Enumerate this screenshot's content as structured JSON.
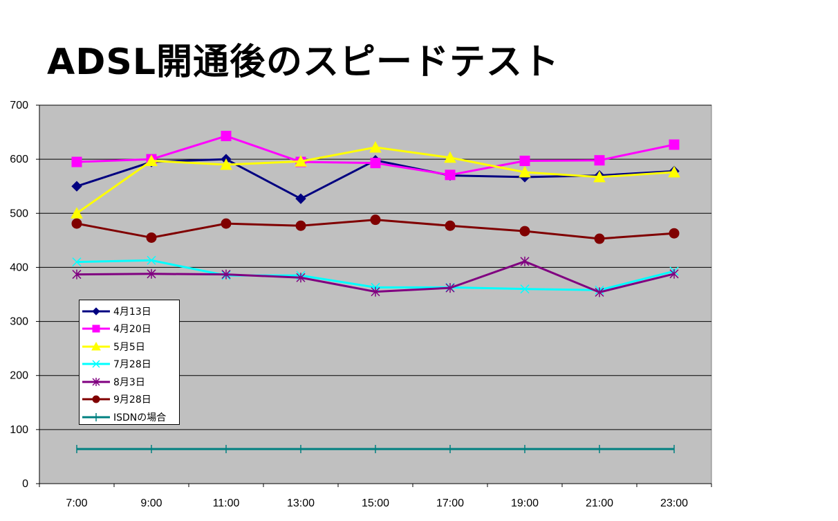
{
  "chart_data": {
    "type": "line",
    "title": "ADSL開通後のスピードテスト",
    "xlabel": "",
    "ylabel": "",
    "categories": [
      "7:00",
      "9:00",
      "11:00",
      "13:00",
      "15:00",
      "17:00",
      "19:00",
      "21:00",
      "23:00"
    ],
    "ylim": [
      0,
      700
    ],
    "yticks": [
      0,
      100,
      200,
      300,
      400,
      500,
      600,
      700
    ],
    "grid": true,
    "plot_background": "#c0c0c0",
    "legend_position": "bottom-left inside plot",
    "series": [
      {
        "name": "4月13日",
        "color": "#000080",
        "marker": "diamond",
        "values": [
          550,
          595,
          600,
          527,
          598,
          570,
          567,
          570,
          578
        ]
      },
      {
        "name": "4月20日",
        "color": "#ff00ff",
        "marker": "square",
        "values": [
          595,
          600,
          643,
          595,
          593,
          571,
          597,
          598,
          627
        ]
      },
      {
        "name": "5月5日",
        "color": "#ffff00",
        "marker": "triangle",
        "values": [
          500,
          597,
          590,
          596,
          622,
          603,
          576,
          567,
          576
        ]
      },
      {
        "name": "7月28日",
        "color": "#00ffff",
        "marker": "x",
        "values": [
          410,
          413,
          385,
          385,
          363,
          363,
          360,
          358,
          393
        ]
      },
      {
        "name": "8月3日",
        "color": "#800080",
        "marker": "star",
        "values": [
          387,
          388,
          387,
          381,
          355,
          362,
          411,
          354,
          388
        ]
      },
      {
        "name": "9月28日",
        "color": "#800000",
        "marker": "circle",
        "values": [
          481,
          455,
          481,
          477,
          488,
          477,
          467,
          453,
          463
        ]
      },
      {
        "name": "ISDNの場合",
        "color": "#008080",
        "marker": "plus",
        "values": [
          64,
          64,
          64,
          64,
          64,
          64,
          64,
          64,
          64
        ]
      }
    ]
  }
}
